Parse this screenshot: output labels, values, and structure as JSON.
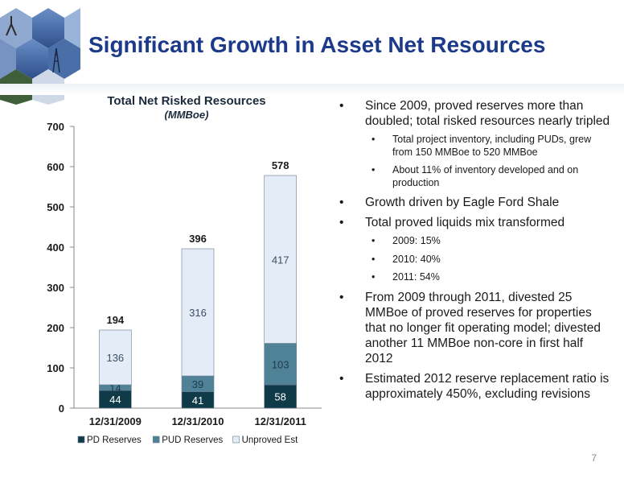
{
  "slide": {
    "title": "Significant Growth in Asset Net Resources",
    "page_number": "7"
  },
  "bullets": [
    {
      "level": 1,
      "text": "Since 2009, proved reserves more than doubled; total risked resources nearly tripled"
    },
    {
      "level": 2,
      "text": "Total project inventory, including PUDs, grew from 150 MMBoe to 520 MMBoe"
    },
    {
      "level": 2,
      "text": "About 11% of inventory developed and on production"
    },
    {
      "level": 1,
      "text": "Growth driven by Eagle Ford Shale"
    },
    {
      "level": 1,
      "text": "Total proved liquids mix transformed"
    },
    {
      "level": 2,
      "text": "2009: 15%"
    },
    {
      "level": 2,
      "text": "2010: 40%"
    },
    {
      "level": 2,
      "text": "2011: 54%"
    },
    {
      "level": 1,
      "text": "From 2009 through 2011, divested 25 MMBoe of proved reserves for properties that no longer fit operating model; divested another 11 MMBoe non-core in first half 2012"
    },
    {
      "level": 1,
      "text": "Estimated 2012 reserve replacement ratio is approximately 450%, excluding revisions"
    }
  ],
  "chart_data": {
    "type": "bar",
    "stacked": true,
    "title": "Total Net Risked Resources",
    "subtitle": "(MMBoe)",
    "categories": [
      "12/31/2009",
      "12/31/2010",
      "12/31/2011"
    ],
    "series": [
      {
        "name": "PD Reserves",
        "values": [
          44,
          41,
          58
        ],
        "color": "#0f3a48"
      },
      {
        "name": "PUD Reserves",
        "values": [
          14,
          39,
          103
        ],
        "color": "#4f8296"
      },
      {
        "name": "Unproved Est",
        "values": [
          136,
          316,
          417
        ],
        "color": "#e4ecf7"
      }
    ],
    "totals": [
      194,
      396,
      578
    ],
    "ylim": [
      0,
      700
    ],
    "yticks": [
      "0",
      "100",
      "200",
      "300",
      "400",
      "500",
      "600",
      "700"
    ],
    "legend_position": "bottom",
    "grid": false
  }
}
